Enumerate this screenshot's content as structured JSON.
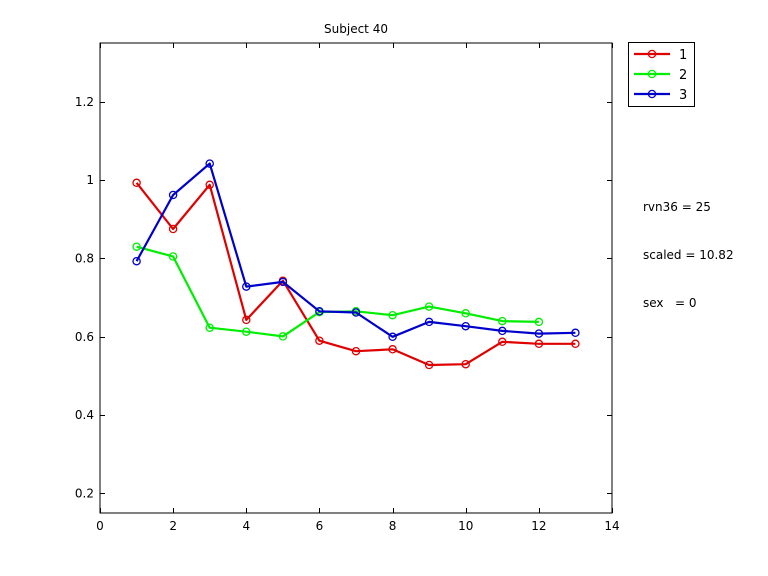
{
  "chart_data": {
    "type": "line",
    "title": "Subject 40",
    "xlabel": "",
    "ylabel": "",
    "xlim": [
      0,
      14
    ],
    "ylim": [
      0.15,
      1.35
    ],
    "x_ticks": [
      0,
      2,
      4,
      6,
      8,
      10,
      12,
      14
    ],
    "y_ticks": [
      0.2,
      0.4,
      0.6,
      0.8,
      1,
      1.2
    ],
    "x_tick_labels": [
      "0",
      "2",
      "4",
      "6",
      "8",
      "10",
      "12",
      "14"
    ],
    "y_tick_labels": [
      "0.2",
      "0.4",
      "0.6",
      "0.8",
      "1",
      "1.2"
    ],
    "grid": true,
    "legend_position": "outside-top-right",
    "series": [
      {
        "name": "1",
        "color": "#e00000",
        "x": [
          1,
          2,
          3,
          4,
          5,
          6,
          7,
          8,
          9,
          10,
          11,
          12,
          13
        ],
        "y": [
          0.993,
          0.875,
          0.988,
          0.643,
          0.743,
          0.59,
          0.563,
          0.568,
          0.528,
          0.53,
          0.587,
          0.582,
          0.582
        ]
      },
      {
        "name": "2",
        "color": "#00ee00",
        "x": [
          1,
          2,
          3,
          4,
          5,
          6,
          7,
          8,
          9,
          10,
          11,
          12
        ],
        "y": [
          0.83,
          0.805,
          0.623,
          0.613,
          0.601,
          0.663,
          0.665,
          0.655,
          0.677,
          0.66,
          0.64,
          0.638
        ]
      },
      {
        "name": "3",
        "color": "#0000cc",
        "x": [
          1,
          2,
          3,
          4,
          5,
          6,
          7,
          8,
          9,
          10,
          11,
          12,
          13
        ],
        "y": [
          0.793,
          0.962,
          1.042,
          0.728,
          0.74,
          0.665,
          0.662,
          0.6,
          0.638,
          0.627,
          0.615,
          0.608,
          0.61
        ]
      }
    ],
    "annotations": [
      "rvn36 = 25",
      "scaled = 10.82",
      "sex   = 0"
    ]
  }
}
